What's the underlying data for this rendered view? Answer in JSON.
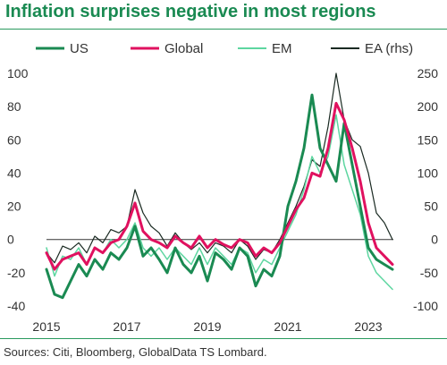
{
  "header": {
    "title": "Inflation surprises negative in most regions",
    "source": "Sources: Citi, Bloomberg, GlobalData TS Lombard."
  },
  "chart_data": {
    "type": "line",
    "title": "Inflation surprises negative in most regions",
    "legend_position": "top",
    "grid": false,
    "x_ticks": [
      "2015",
      "2017",
      "2019",
      "2021",
      "2023"
    ],
    "x_range": [
      2015,
      2023.8
    ],
    "y_left": {
      "range": [
        -40,
        100
      ],
      "ticks": [
        -40,
        -20,
        0,
        20,
        40,
        60,
        80,
        100
      ]
    },
    "y_right": {
      "range": [
        -100,
        250
      ],
      "ticks": [
        -100,
        -50,
        0,
        50,
        100,
        150,
        200,
        250
      ]
    },
    "reference_line": 0,
    "series": [
      {
        "name": "US",
        "axis": "left",
        "color": "#1a8a52",
        "width": 3,
        "x": [
          2015.0,
          2015.2,
          2015.4,
          2015.6,
          2015.8,
          2016.0,
          2016.2,
          2016.4,
          2016.6,
          2016.8,
          2017.0,
          2017.2,
          2017.4,
          2017.6,
          2017.8,
          2018.0,
          2018.2,
          2018.4,
          2018.6,
          2018.8,
          2019.0,
          2019.2,
          2019.4,
          2019.6,
          2019.8,
          2020.0,
          2020.2,
          2020.4,
          2020.6,
          2020.8,
          2021.0,
          2021.2,
          2021.4,
          2021.6,
          2021.8,
          2022.0,
          2022.2,
          2022.4,
          2022.6,
          2022.8,
          2023.0,
          2023.2,
          2023.4,
          2023.6
        ],
        "y": [
          -18,
          -33,
          -35,
          -25,
          -15,
          -22,
          -12,
          -18,
          -8,
          -12,
          -5,
          8,
          -10,
          -5,
          -12,
          -20,
          -5,
          -15,
          -20,
          -10,
          -25,
          -8,
          -12,
          -18,
          -5,
          -10,
          -28,
          -18,
          -22,
          -10,
          20,
          35,
          55,
          87,
          55,
          45,
          35,
          70,
          45,
          20,
          -5,
          -12,
          -15,
          -18
        ]
      },
      {
        "name": "Global",
        "axis": "left",
        "color": "#e0115f",
        "width": 3,
        "x": [
          2015.0,
          2015.2,
          2015.4,
          2015.6,
          2015.8,
          2016.0,
          2016.2,
          2016.4,
          2016.6,
          2016.8,
          2017.0,
          2017.2,
          2017.4,
          2017.6,
          2017.8,
          2018.0,
          2018.2,
          2018.4,
          2018.6,
          2018.8,
          2019.0,
          2019.2,
          2019.4,
          2019.6,
          2019.8,
          2020.0,
          2020.2,
          2020.4,
          2020.6,
          2020.8,
          2021.0,
          2021.2,
          2021.4,
          2021.6,
          2021.8,
          2022.0,
          2022.2,
          2022.4,
          2022.6,
          2022.8,
          2023.0,
          2023.2,
          2023.4,
          2023.6
        ],
        "y": [
          -8,
          -18,
          -12,
          -10,
          -8,
          -15,
          -5,
          -8,
          -2,
          0,
          8,
          22,
          5,
          0,
          -2,
          -5,
          2,
          -2,
          -5,
          2,
          -5,
          0,
          -3,
          -5,
          0,
          -2,
          -10,
          -5,
          -8,
          -2,
          8,
          18,
          25,
          40,
          38,
          55,
          82,
          72,
          55,
          35,
          10,
          -5,
          -10,
          -15
        ]
      },
      {
        "name": "EM",
        "axis": "left",
        "color": "#5dd6a0",
        "width": 1.5,
        "x": [
          2015.0,
          2015.2,
          2015.4,
          2015.6,
          2015.8,
          2016.0,
          2016.2,
          2016.4,
          2016.6,
          2016.8,
          2017.0,
          2017.2,
          2017.4,
          2017.6,
          2017.8,
          2018.0,
          2018.2,
          2018.4,
          2018.6,
          2018.8,
          2019.0,
          2019.2,
          2019.4,
          2019.6,
          2019.8,
          2020.0,
          2020.2,
          2020.4,
          2020.6,
          2020.8,
          2021.0,
          2021.2,
          2021.4,
          2021.6,
          2021.8,
          2022.0,
          2022.2,
          2022.4,
          2022.6,
          2022.8,
          2023.0,
          2023.2,
          2023.4,
          2023.6
        ],
        "y": [
          -5,
          -22,
          -10,
          -12,
          -5,
          -15,
          -5,
          -8,
          0,
          -5,
          0,
          10,
          -5,
          -10,
          -5,
          -12,
          -5,
          -10,
          -15,
          -5,
          -15,
          -5,
          -10,
          -15,
          -5,
          -8,
          -20,
          -12,
          -15,
          -5,
          5,
          15,
          30,
          50,
          40,
          50,
          75,
          45,
          30,
          15,
          -10,
          -20,
          -25,
          -30
        ]
      },
      {
        "name": "EA (rhs)",
        "axis": "right",
        "color": "#1a2a22",
        "width": 1.2,
        "x": [
          2015.0,
          2015.2,
          2015.4,
          2015.6,
          2015.8,
          2016.0,
          2016.2,
          2016.4,
          2016.6,
          2016.8,
          2017.0,
          2017.2,
          2017.4,
          2017.6,
          2017.8,
          2018.0,
          2018.2,
          2018.4,
          2018.6,
          2018.8,
          2019.0,
          2019.2,
          2019.4,
          2019.6,
          2019.8,
          2020.0,
          2020.2,
          2020.4,
          2020.6,
          2020.8,
          2021.0,
          2021.2,
          2021.4,
          2021.6,
          2021.8,
          2022.0,
          2022.2,
          2022.4,
          2022.6,
          2022.8,
          2023.0,
          2023.2,
          2023.4,
          2023.6
        ],
        "y": [
          -20,
          -35,
          -10,
          -15,
          -5,
          -20,
          5,
          -5,
          15,
          10,
          20,
          75,
          40,
          20,
          10,
          -10,
          10,
          -5,
          -15,
          -5,
          -20,
          -5,
          -10,
          -20,
          0,
          -10,
          -30,
          -15,
          -20,
          0,
          25,
          50,
          80,
          120,
          110,
          170,
          250,
          180,
          150,
          140,
          100,
          40,
          25,
          0
        ]
      }
    ]
  }
}
